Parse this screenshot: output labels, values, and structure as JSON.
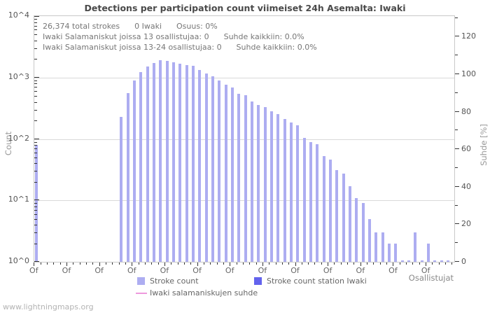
{
  "title": "Detections per participation count viimeiset 24h Asemalta: Iwaki",
  "watermark": "www.lightningmaps.org",
  "annotation": {
    "line1": "26,374 total strokes      0 Iwaki      Osuus: 0%",
    "line2": "Iwaki Salamaniskut joissa 13 osallistujaa: 0      Suhde kaikkiin: 0.0%",
    "line3": "Iwaki Salamaniskut joissa 13-24 osallistujaa: 0      Suhde kaikkiin: 0.0%"
  },
  "colors": {
    "bar": "#adadf1",
    "station_bar": "#6363ed",
    "ratio_line": "#ee99dd",
    "grid": "#d9d9d9",
    "border": "#c9c9c9",
    "tick": "#333333"
  },
  "legend": [
    {
      "label": "Stroke count",
      "swatch": "square",
      "color": "#adadf1"
    },
    {
      "label": "Stroke count station Iwaki",
      "swatch": "square",
      "color": "#6363ed"
    },
    {
      "label": "Iwaki salamaniskujen suhde",
      "swatch": "line",
      "color": "#ee99dd"
    }
  ],
  "chart_data": {
    "type": "bar",
    "title": "Detections per participation count viimeiset 24h Asemalta: Iwaki",
    "x_label": "Osallistujat",
    "y_left_label": "Count",
    "y_right_label": "Suhde [%]",
    "y_left_scale": "log",
    "y_left_range": [
      1,
      10000
    ],
    "y_left_ticks": [
      "10^0",
      "10^1",
      "10^2",
      "10^3",
      "10^4"
    ],
    "y_right_range": [
      0,
      130
    ],
    "y_right_ticks": [
      0,
      20,
      40,
      60,
      80,
      100,
      120
    ],
    "y_right_minor_step": 10,
    "x_range": [
      0,
      64
    ],
    "x_major_every": 5,
    "x_tick_label": "Of",
    "x_tick_label_count": 13,
    "grid": "horizontal-decades",
    "legend_position": "bottom",
    "categories_note": "x = number of participating stations (Osallistujat), 0..63",
    "series": [
      {
        "name": "Stroke count",
        "values": [
          80,
          0,
          0,
          0,
          0,
          0,
          0,
          0,
          0,
          0,
          0,
          0,
          0,
          227,
          556,
          900,
          1240,
          1530,
          1710,
          1930,
          1846,
          1783,
          1663,
          1592,
          1549,
          1312,
          1172,
          1045,
          885,
          755,
          680,
          542,
          518,
          402,
          359,
          329,
          281,
          253,
          212,
          186,
          166,
          105,
          88,
          82,
          53,
          46,
          31,
          27,
          17,
          11,
          9,
          5,
          3,
          3,
          2,
          2,
          1,
          1,
          3,
          1,
          2,
          1,
          1,
          1
        ]
      },
      {
        "name": "Stroke count station Iwaki",
        "values_constant": 0
      },
      {
        "name": "Iwaki salamaniskujen suhde",
        "unit": "%",
        "values_constant": 0
      }
    ]
  }
}
